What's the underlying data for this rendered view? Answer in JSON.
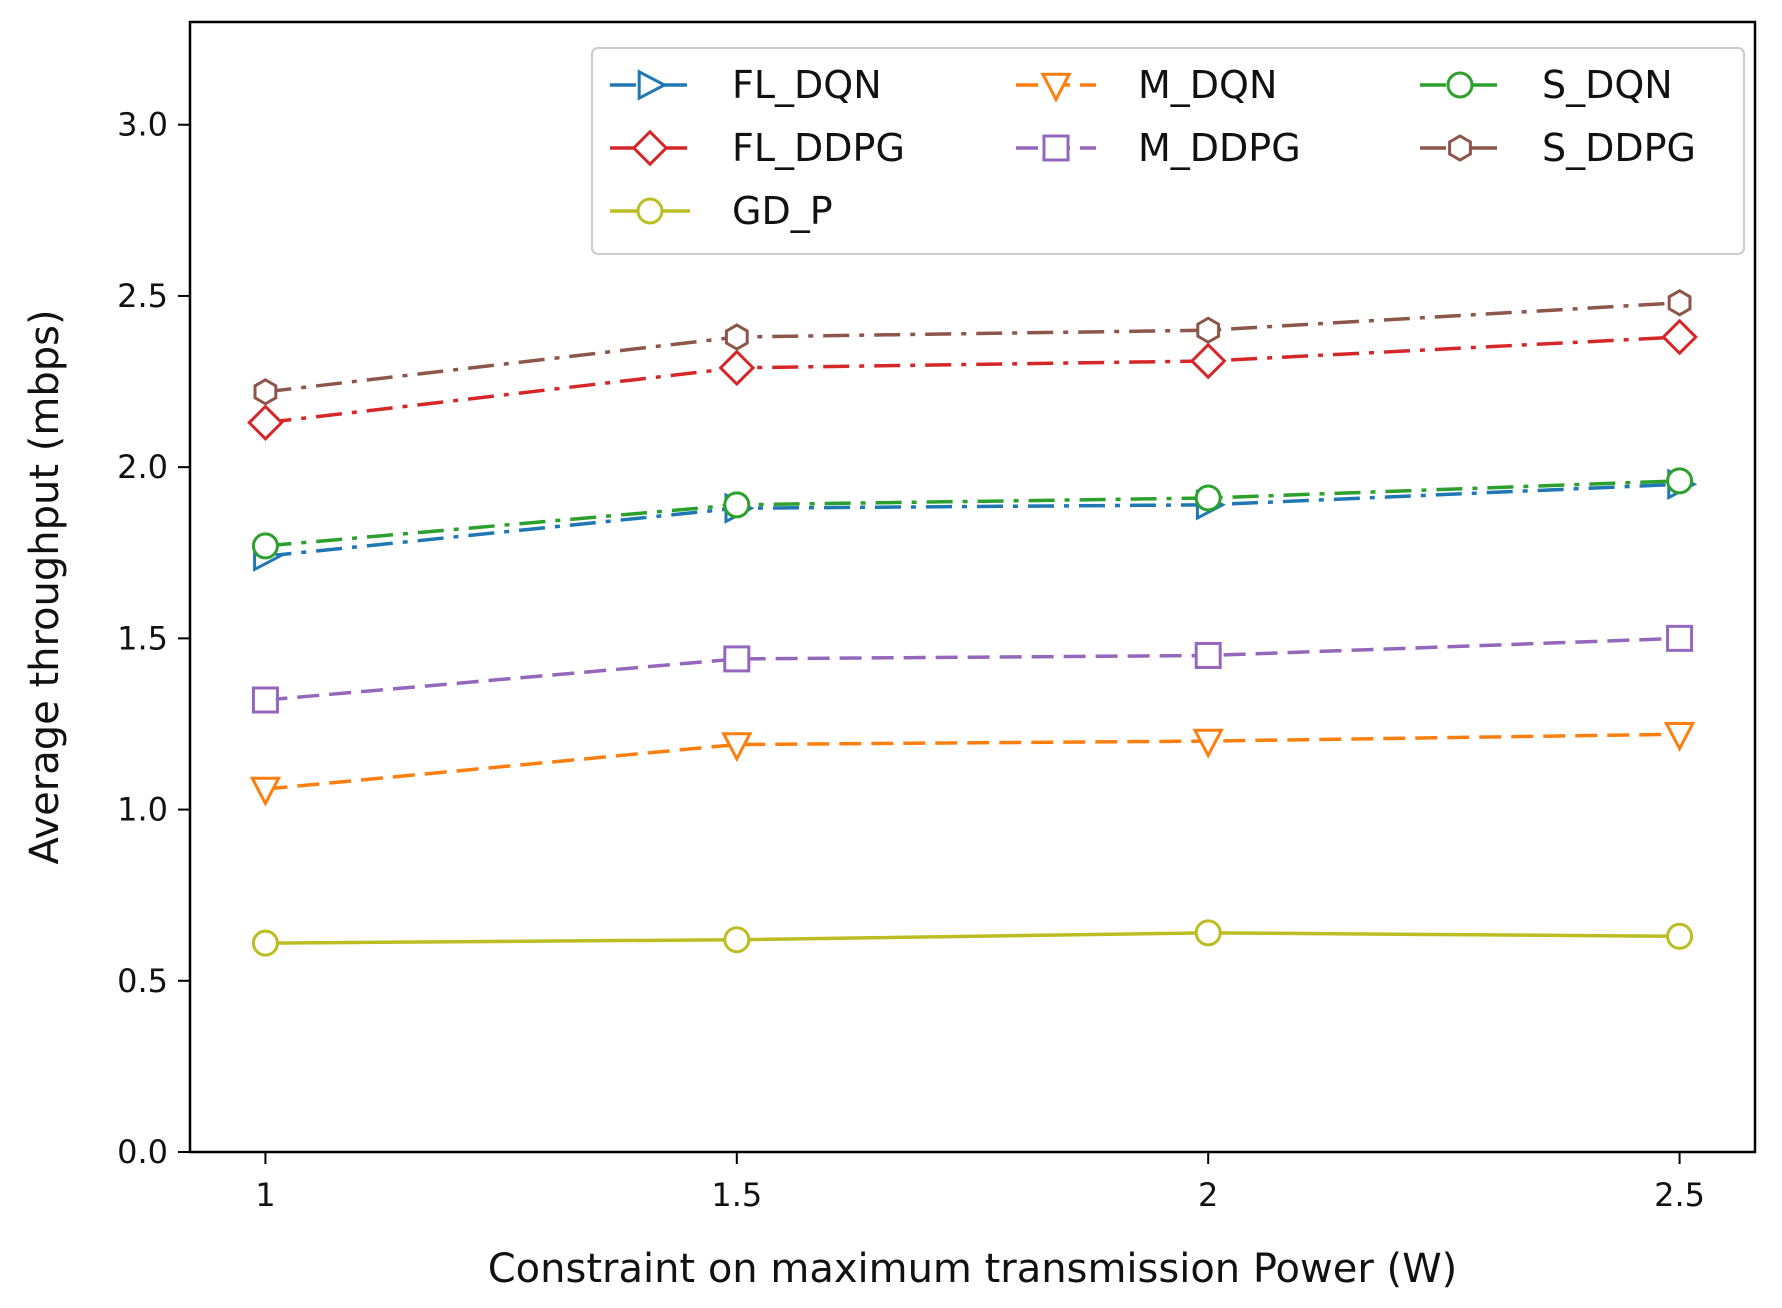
{
  "chart_data": {
    "type": "line",
    "xlabel": "Constraint on maximum transmission Power (W)",
    "ylabel": "Average throughput (mbps)",
    "x": [
      1,
      1.5,
      2,
      2.5
    ],
    "x_tick_labels": [
      "1",
      "1.5",
      "2",
      "2.5"
    ],
    "y_ticks": [
      0.0,
      0.5,
      1.0,
      1.5,
      2.0,
      2.5,
      3.0
    ],
    "y_tick_labels": [
      "0.0",
      "0.5",
      "1.0",
      "1.5",
      "2.0",
      "2.5",
      "3.0"
    ],
    "xlim": [
      0.92,
      2.58
    ],
    "ylim": [
      0.0,
      3.3
    ],
    "grid": false,
    "legend_position": "top-right",
    "series": [
      {
        "name": "FL_DQN",
        "values": [
          1.74,
          1.88,
          1.89,
          1.95
        ],
        "color": "#1f77b4",
        "marker": "triangle-right",
        "dash": "dashdot"
      },
      {
        "name": "M_DQN",
        "values": [
          1.06,
          1.19,
          1.2,
          1.22
        ],
        "color": "#ff7f0e",
        "marker": "triangle-down",
        "dash": "dashed"
      },
      {
        "name": "S_DQN",
        "values": [
          1.77,
          1.89,
          1.91,
          1.96
        ],
        "color": "#2ca02c",
        "marker": "circle",
        "dash": "dashdot"
      },
      {
        "name": "FL_DDPG",
        "values": [
          2.13,
          2.29,
          2.31,
          2.38
        ],
        "color": "#d62728",
        "marker": "diamond",
        "dash": "dashdot"
      },
      {
        "name": "M_DDPG",
        "values": [
          1.32,
          1.44,
          1.45,
          1.5
        ],
        "color": "#9467bd",
        "marker": "square",
        "dash": "dashed"
      },
      {
        "name": "S_DDPG",
        "values": [
          2.22,
          2.38,
          2.4,
          2.48
        ],
        "color": "#8c564b",
        "marker": "hexagon",
        "dash": "dashdot"
      },
      {
        "name": "GD_P",
        "values": [
          0.61,
          0.62,
          0.64,
          0.63
        ],
        "color": "#bcbd22",
        "marker": "circle",
        "dash": "solid"
      }
    ]
  }
}
